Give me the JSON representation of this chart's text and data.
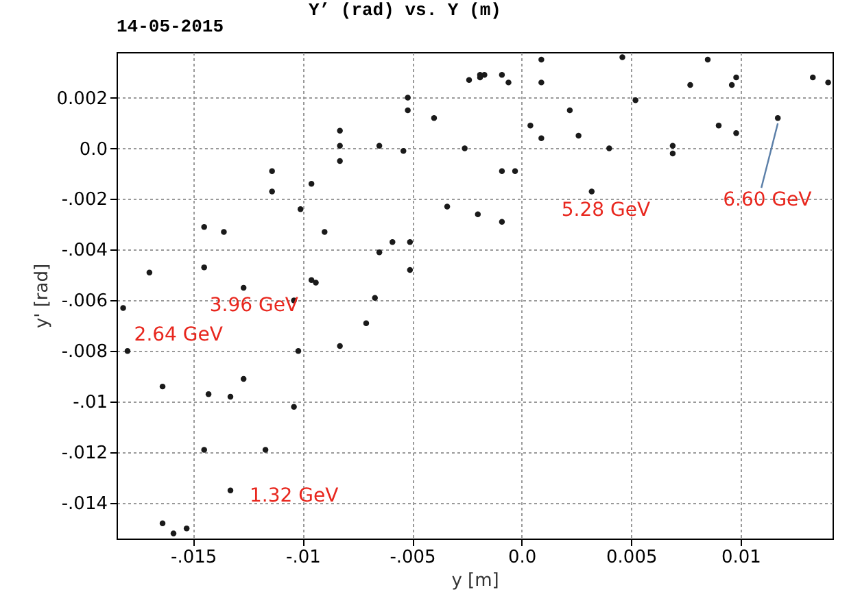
{
  "chart_data": {
    "type": "scatter",
    "title": "Y’    (rad)  vs.    Y     (m)",
    "subtitle": "14-05-2015",
    "xlabel": "y [m]",
    "ylabel": "y' [rad]",
    "xlim": [
      -0.0185,
      0.0142
    ],
    "ylim": [
      -0.0154,
      0.0038
    ],
    "xticks": [
      {
        "value": -0.015,
        "label": "-.015"
      },
      {
        "value": -0.01,
        "label": "-.01"
      },
      {
        "value": -0.005,
        "label": "-.005"
      },
      {
        "value": 0,
        "label": "0.0"
      },
      0.005,
      0.01
    ],
    "yticks": [
      0.002,
      {
        "value": 0,
        "label": "0.0"
      },
      {
        "value": -0.002,
        "label": "-.002"
      },
      {
        "value": -0.004,
        "label": "-.004"
      },
      {
        "value": -0.006,
        "label": "-.006"
      },
      {
        "value": -0.008,
        "label": "-.008"
      },
      {
        "value": -0.01,
        "label": "-.01"
      },
      {
        "value": -0.012,
        "label": "-.012"
      },
      {
        "value": -0.014,
        "label": "-.014"
      }
    ],
    "grid": true,
    "legend": false,
    "marker": "circle",
    "series": [
      {
        "name": "1.32 GeV",
        "color": "#1a1a1a",
        "x": [
          -0.0164,
          -0.0159,
          -0.0153,
          -0.0133,
          -0.0117,
          -0.0104,
          -0.0083,
          -0.0067,
          -0.0051,
          -0.0026,
          -0.0017,
          -0.0024,
          -0.0054,
          -0.0094,
          -0.0104,
          -0.0133,
          -0.0145
        ],
        "values": [
          -0.0148,
          -0.0152,
          -0.015,
          -0.0135,
          -0.0119,
          -0.0102,
          -0.0078,
          -0.0059,
          -0.0037,
          0.0,
          0.0029,
          0.0027,
          -0.0001,
          -0.0053,
          -0.006,
          -0.0098,
          -0.0119
        ]
      },
      {
        "name": "2.64 GeV",
        "color": "#1a1a1a",
        "x": [
          -0.0182,
          -0.018,
          -0.0164,
          -0.0143,
          -0.0127,
          -0.0102,
          -0.0071,
          -0.0051,
          -0.002,
          -0.0003,
          0.0004,
          -0.0006,
          -0.0019,
          -0.0052,
          -0.0083,
          -0.0114,
          -0.0145,
          -0.017
        ],
        "values": [
          -0.0063,
          -0.008,
          -0.0094,
          -0.0097,
          -0.0091,
          -0.008,
          -0.0069,
          -0.0048,
          -0.0026,
          -0.0009,
          0.0009,
          0.0026,
          0.0029,
          0.002,
          0.0007,
          -0.0009,
          -0.0031,
          -0.0049
        ]
      },
      {
        "name": "3.96 GeV",
        "color": "#1a1a1a",
        "x": [
          -0.0145,
          -0.0127,
          -0.0096,
          -0.0065,
          -0.0034,
          -0.0009,
          0.0009,
          0.0022,
          0.0009,
          -0.0019,
          -0.0052,
          -0.0083,
          -0.0114,
          -0.0136
        ],
        "values": [
          -0.0047,
          -0.0055,
          -0.0052,
          -0.0041,
          -0.0023,
          -0.0009,
          0.0004,
          0.0015,
          0.0026,
          0.0028,
          0.0015,
          0.0001,
          -0.0017,
          -0.0033
        ]
      },
      {
        "name": "5.28 GeV",
        "color": "#1a1a1a",
        "x": [
          -0.0101,
          -0.009,
          -0.0059,
          -0.0009,
          0.0032,
          0.0069,
          0.009,
          0.0096,
          0.0085,
          0.0046,
          0.0009,
          -0.0009,
          -0.004,
          -0.0065,
          -0.0083,
          -0.0096
        ],
        "values": [
          -0.0024,
          -0.0033,
          -0.0037,
          -0.0029,
          -0.0017,
          -0.0002,
          0.0009,
          0.0025,
          0.0035,
          0.0036,
          0.0035,
          0.0029,
          0.0012,
          0.0001,
          -0.0005,
          -0.0014
        ]
      },
      {
        "name": "6.60 GeV",
        "color": "#1a1a1a",
        "x": [
          0.0026,
          0.004,
          0.0069,
          0.0098,
          0.0117,
          0.014,
          0.0133,
          0.0098,
          0.0077,
          0.0052
        ],
        "values": [
          0.0005,
          0.0,
          0.0001,
          0.0006,
          0.0012,
          0.0026,
          0.0028,
          0.0028,
          0.0025,
          0.0019
        ]
      }
    ]
  }
}
